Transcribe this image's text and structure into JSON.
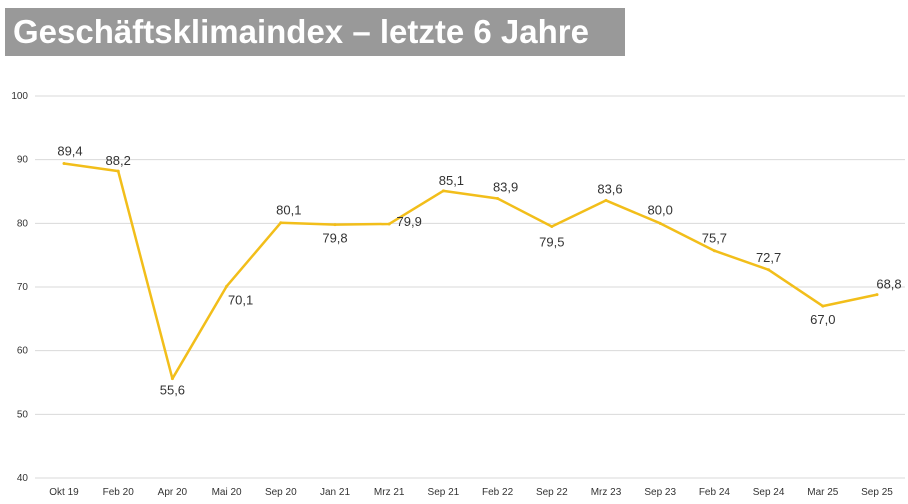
{
  "chart_data": {
    "type": "line",
    "title": "Geschäftsklimaindex – letzte 6 Jahre",
    "categories": [
      "Okt 19",
      "Feb 20",
      "Apr 20",
      "Mai 20",
      "Sep 20",
      "Jan 21",
      "Mrz 21",
      "Sep 21",
      "Feb 22",
      "Sep 22",
      "Mrz 23",
      "Sep 23",
      "Feb 24",
      "Sep 24",
      "Mar 25",
      "Sep 25"
    ],
    "values": [
      89.4,
      88.2,
      55.6,
      70.1,
      80.1,
      79.8,
      79.9,
      85.1,
      83.9,
      79.5,
      83.6,
      80.0,
      75.7,
      72.7,
      67.0,
      68.8
    ],
    "data_labels": [
      "89,4",
      "88,2",
      "55,6",
      "70,1",
      "80,1",
      "79,8",
      "79,9",
      "85,1",
      "83,9",
      "79,5",
      "83,6",
      "80,0",
      "75,7",
      "72,7",
      "67,0",
      "68,8"
    ],
    "ylim": [
      40,
      100
    ],
    "yticks": [
      40,
      50,
      60,
      70,
      80,
      90,
      100
    ],
    "grid": true,
    "legend": "none",
    "line_color": "#F2BE1A",
    "xlabel": "",
    "ylabel": ""
  }
}
